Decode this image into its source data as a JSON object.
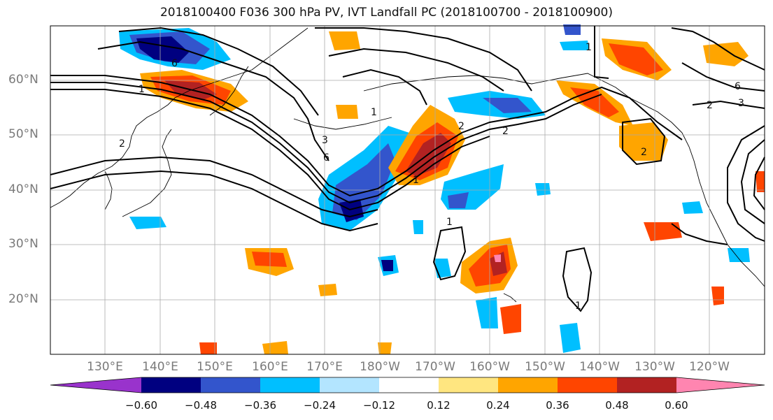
{
  "title": "2018100400 F036 300 hPa PV, IVT Landfall PC (2018100700 - 2018100900)",
  "lat_labels": [
    "60°N",
    "50°N",
    "40°N",
    "30°N",
    "20°N"
  ],
  "lon_labels": [
    "130°E",
    "140°E",
    "150°E",
    "160°E",
    "170°E",
    "180°W",
    "170°W",
    "160°W",
    "150°W",
    "140°W",
    "130°W",
    "120°W"
  ],
  "colorbar": {
    "tick_labels": [
      "−0.60",
      "−0.48",
      "−0.36",
      "−0.24",
      "−0.12",
      "0.12",
      "0.24",
      "0.36",
      "0.48",
      "0.60"
    ],
    "colors": [
      "#9933cc",
      "#000080",
      "#3355cc",
      "#00bfff",
      "#b3e5ff",
      "#ffffff",
      "#ffe680",
      "#ffa500",
      "#ff4500",
      "#b22222",
      "#ff85b0"
    ]
  },
  "contour_labels": [
    "1",
    "2",
    "6",
    "1",
    "2",
    "6",
    "3",
    "1",
    "2",
    "1",
    "2",
    "3",
    "6",
    "1",
    "1",
    "2"
  ],
  "colors": {
    "land": "#000000",
    "grid": "#aaaaaa",
    "contour": "#000000"
  }
}
